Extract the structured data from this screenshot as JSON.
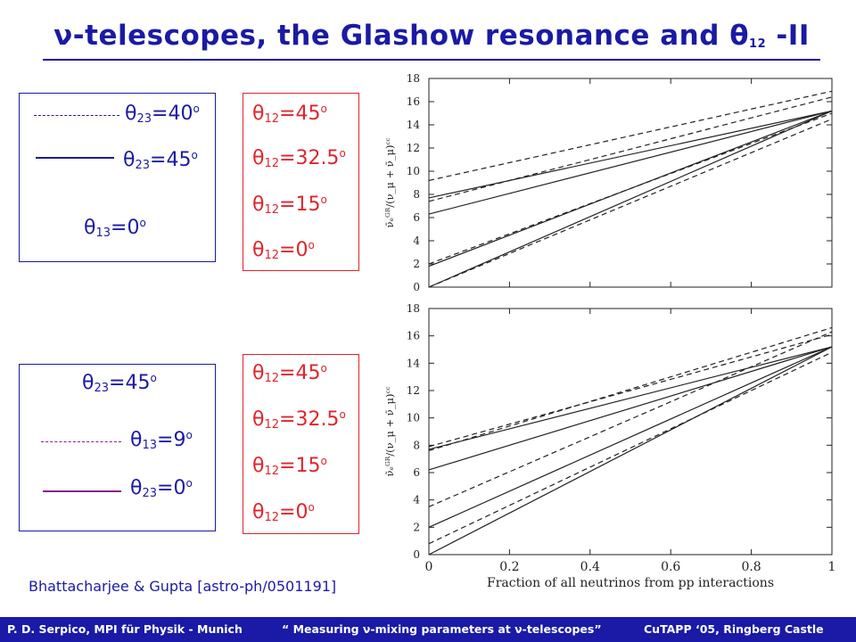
{
  "title": {
    "nu": "ν",
    "part1": "-telescopes, the Glashow resonance and ",
    "theta": "θ",
    "sub": "12",
    "part2": " -II"
  },
  "legend_top_left": {
    "row1": {
      "theta": "θ",
      "sub": "23",
      "val": "=40",
      "deg": "o"
    },
    "row2": {
      "theta": "θ",
      "sub": "23",
      "val": "=45",
      "deg": "o"
    },
    "row3": {
      "theta": "θ",
      "sub": "13",
      "val": "=0",
      "deg": "o"
    }
  },
  "legend_bottom_left": {
    "row1": {
      "theta": "θ",
      "sub": "23",
      "val": "=45",
      "deg": "o"
    },
    "row2": {
      "theta": "θ",
      "sub": "13",
      "val": "=9",
      "deg": "o"
    },
    "row3": {
      "theta": "θ",
      "sub": "23",
      "val": "=0",
      "deg": "o"
    }
  },
  "legend_top_right": [
    {
      "theta": "θ",
      "sub": "12",
      "val": "=45",
      "deg": "o"
    },
    {
      "theta": "θ",
      "sub": "12",
      "val": "=32.5",
      "deg": "o"
    },
    {
      "theta": "θ",
      "sub": "12",
      "val": "=15",
      "deg": "o"
    },
    {
      "theta": "θ",
      "sub": "12",
      "val": "=0",
      "deg": "o"
    }
  ],
  "legend_bottom_right": [
    {
      "theta": "θ",
      "sub": "12",
      "val": "=45",
      "deg": "o"
    },
    {
      "theta": "θ",
      "sub": "12",
      "val": "=32.5",
      "deg": "o"
    },
    {
      "theta": "θ",
      "sub": "12",
      "val": "=15",
      "deg": "o"
    },
    {
      "theta": "θ",
      "sub": "12",
      "val": "=0",
      "deg": "o"
    }
  ],
  "citation": "Bhattacharjee & Gupta [astro-ph/0501191]",
  "footer": {
    "left": "P. D. Serpico, MPI für Physik - Munich",
    "middle": "“ Measuring ν-mixing parameters at ν-telescopes”",
    "right": "CuTAPP ‘05, Ringberg Castle"
  },
  "colors": {
    "blue": "#1a1aa6",
    "red": "#e0242c",
    "magenta": "#8a1a8a"
  },
  "chart_data": [
    {
      "type": "line",
      "xlim": [
        0,
        1
      ],
      "ylim": [
        0,
        18
      ],
      "xticks": [
        "0",
        "0.2",
        "0.4",
        "0.6",
        "0.8",
        "1"
      ],
      "yticks": [
        "0",
        "2",
        "4",
        "6",
        "8",
        "10",
        "12",
        "14",
        "16",
        "18"
      ],
      "ylabel": "ν̄ₑᴳᴿ/(ν_μ + ν̄_μ)ᶜᶜ",
      "xlabel": "",
      "grid": false,
      "series": [
        {
          "style": "solid",
          "x": [
            0,
            1
          ],
          "y": [
            7.7,
            15.2
          ]
        },
        {
          "style": "solid",
          "x": [
            0,
            1
          ],
          "y": [
            6.3,
            15.2
          ]
        },
        {
          "style": "solid",
          "x": [
            0,
            1
          ],
          "y": [
            1.8,
            15.2
          ]
        },
        {
          "style": "solid",
          "x": [
            0,
            1
          ],
          "y": [
            0.0,
            15.2
          ]
        },
        {
          "style": "dashed",
          "x": [
            0,
            1
          ],
          "y": [
            9.2,
            16.9
          ]
        },
        {
          "style": "dashed",
          "x": [
            0,
            1
          ],
          "y": [
            7.4,
            16.4
          ]
        },
        {
          "style": "dashed",
          "x": [
            0,
            1
          ],
          "y": [
            2.0,
            15.0
          ]
        },
        {
          "style": "dashed",
          "x": [
            0,
            1
          ],
          "y": [
            0.0,
            14.5
          ]
        }
      ]
    },
    {
      "type": "line",
      "xlim": [
        0,
        1
      ],
      "ylim": [
        0,
        18
      ],
      "xticks": [
        "0",
        "0.2",
        "0.4",
        "0.6",
        "0.8",
        "1"
      ],
      "yticks": [
        "0",
        "2",
        "4",
        "6",
        "8",
        "10",
        "12",
        "14",
        "16",
        "18"
      ],
      "ylabel": "ν̄ₑᴳᴿ/(ν_μ + ν̄_μ)ᶜᶜ",
      "xlabel": "Fraction of all neutrinos from pp interactions",
      "grid": false,
      "series": [
        {
          "style": "solid",
          "x": [
            0,
            1
          ],
          "y": [
            7.7,
            15.2
          ]
        },
        {
          "style": "solid",
          "x": [
            0,
            1
          ],
          "y": [
            6.2,
            15.2
          ]
        },
        {
          "style": "solid",
          "x": [
            0,
            1
          ],
          "y": [
            2.0,
            15.2
          ]
        },
        {
          "style": "solid",
          "x": [
            0,
            1
          ],
          "y": [
            0.0,
            15.2
          ]
        },
        {
          "style": "dashed",
          "x": [
            0,
            1
          ],
          "y": [
            7.9,
            16.1
          ]
        },
        {
          "style": "dashed",
          "x": [
            0,
            1
          ],
          "y": [
            7.6,
            16.6
          ]
        },
        {
          "style": "dashed",
          "x": [
            0,
            1
          ],
          "y": [
            3.5,
            16.3
          ]
        },
        {
          "style": "dashed",
          "x": [
            0,
            1
          ],
          "y": [
            0.8,
            14.8
          ]
        }
      ]
    }
  ]
}
